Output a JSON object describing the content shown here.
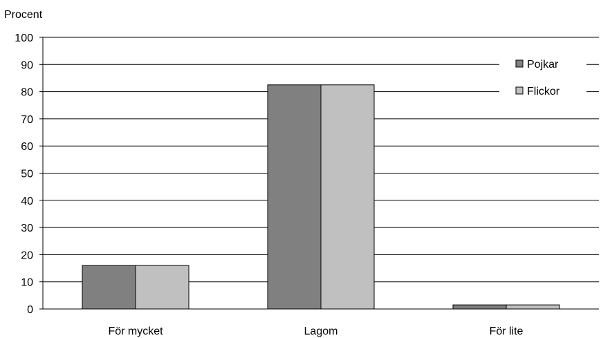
{
  "chart_data": {
    "type": "bar",
    "ylabel": "Procent",
    "categories": [
      "För mycket",
      "Lagom",
      "För lite"
    ],
    "series": [
      {
        "name": "Pojkar",
        "color": "#808080",
        "values": [
          16,
          82.5,
          1.5
        ]
      },
      {
        "name": "Flickor",
        "color": "#c0c0c0",
        "values": [
          16,
          82.5,
          1.5
        ]
      }
    ],
    "ylim": [
      0,
      100
    ],
    "yticks": [
      0,
      10,
      20,
      30,
      40,
      50,
      60,
      70,
      80,
      90,
      100
    ],
    "grid": true,
    "legend_position": "top-right"
  }
}
